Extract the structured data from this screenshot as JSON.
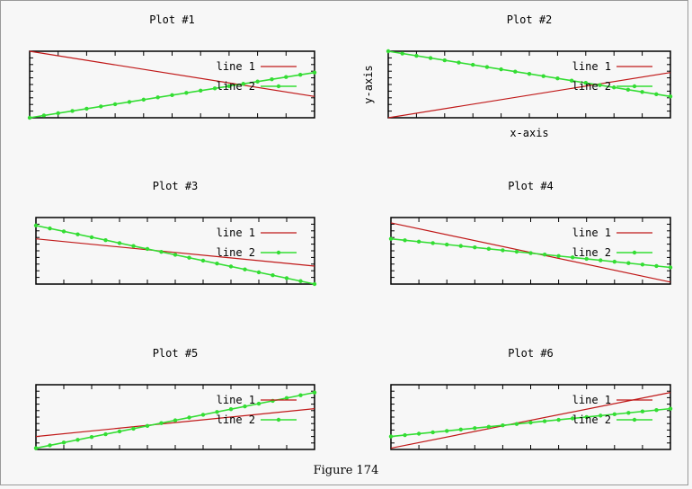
{
  "figure": {
    "caption": "Figure 174",
    "colors": {
      "line1": "#c01818",
      "line2": "#33dd33",
      "axis": "#000000",
      "background": "#f7f7f7"
    }
  },
  "chart_data": [
    {
      "type": "line",
      "title": "Plot #1",
      "xlabel": "",
      "ylabel": "",
      "x": [
        0,
        1
      ],
      "xlim": [
        0,
        1
      ],
      "ylim": [
        0,
        1
      ],
      "legend": "top-right",
      "series": [
        {
          "name": "line 1",
          "style": "line",
          "values": [
            1.0,
            0.32
          ]
        },
        {
          "name": "line 2",
          "style": "linespoints",
          "values": [
            0.0,
            0.68
          ]
        }
      ]
    },
    {
      "type": "line",
      "title": "Plot #2",
      "xlabel": "x-axis",
      "ylabel": "y-axis",
      "x": [
        0,
        1
      ],
      "xlim": [
        0,
        1
      ],
      "ylim": [
        0,
        1
      ],
      "legend": "top-right",
      "series": [
        {
          "name": "line 1",
          "style": "line",
          "values": [
            0.0,
            0.68
          ]
        },
        {
          "name": "line 2",
          "style": "linespoints",
          "values": [
            1.0,
            0.32
          ]
        }
      ]
    },
    {
      "type": "line",
      "title": "Plot #3",
      "xlabel": "",
      "ylabel": "",
      "x": [
        0,
        1
      ],
      "xlim": [
        0,
        1
      ],
      "ylim": [
        0,
        1
      ],
      "legend": "top-right",
      "series": [
        {
          "name": "line 1",
          "style": "line",
          "values": [
            0.68,
            0.27
          ]
        },
        {
          "name": "line 2",
          "style": "linespoints",
          "values": [
            0.88,
            0.0
          ]
        }
      ]
    },
    {
      "type": "line",
      "title": "Plot #4",
      "xlabel": "",
      "ylabel": "",
      "x": [
        0,
        1
      ],
      "xlim": [
        0,
        1
      ],
      "ylim": [
        0,
        1
      ],
      "legend": "top-right",
      "series": [
        {
          "name": "line 1",
          "style": "line",
          "values": [
            0.92,
            0.03
          ]
        },
        {
          "name": "line 2",
          "style": "linespoints",
          "values": [
            0.68,
            0.25
          ]
        }
      ]
    },
    {
      "type": "line",
      "title": "Plot #5",
      "xlabel": "",
      "ylabel": "",
      "x": [
        0,
        1
      ],
      "xlim": [
        0,
        1
      ],
      "ylim": [
        0,
        1
      ],
      "legend": "top-right",
      "series": [
        {
          "name": "line 1",
          "style": "line",
          "values": [
            0.2,
            0.63
          ]
        },
        {
          "name": "line 2",
          "style": "linespoints",
          "values": [
            0.02,
            0.88
          ]
        }
      ]
    },
    {
      "type": "line",
      "title": "Plot #6",
      "xlabel": "",
      "ylabel": "",
      "x": [
        0,
        1
      ],
      "xlim": [
        0,
        1
      ],
      "ylim": [
        0,
        1
      ],
      "legend": "top-right",
      "series": [
        {
          "name": "line 1",
          "style": "line",
          "values": [
            0.02,
            0.88
          ]
        },
        {
          "name": "line 2",
          "style": "linespoints",
          "values": [
            0.2,
            0.63
          ]
        }
      ]
    }
  ]
}
